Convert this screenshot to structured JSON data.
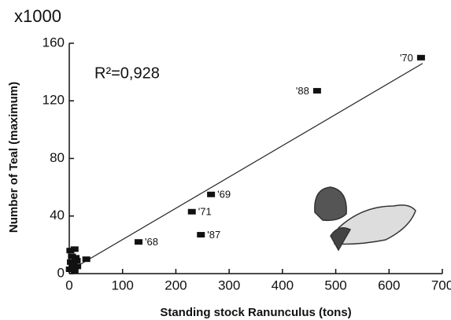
{
  "chart_data": {
    "type": "scatter",
    "unit_label": "x1000",
    "annotation": "R²=0,928",
    "x_label": "Standing stock Ranunculus (tons)",
    "y_label": "Number of Teal (maximum)",
    "xlim": [
      0,
      700
    ],
    "ylim": [
      0,
      160
    ],
    "xticks": [
      0,
      100,
      200,
      300,
      400,
      500,
      600,
      700
    ],
    "yticks": [
      0,
      40,
      80,
      120,
      160
    ],
    "series": [
      {
        "color": "#111111",
        "x": [
          660,
          465,
          266,
          230,
          247,
          130,
          32,
          2,
          10,
          5,
          12,
          3,
          8,
          15,
          1,
          10,
          14,
          6
        ],
        "values": [
          150,
          127,
          55,
          43,
          27,
          22,
          10,
          16,
          17,
          12,
          11,
          8,
          6,
          5,
          3,
          2,
          9,
          4
        ],
        "labels": [
          "'70",
          "'88",
          "'69",
          "'71",
          "'87",
          "'68",
          null,
          null,
          null,
          null,
          null,
          null,
          null,
          null,
          null,
          null,
          null,
          null
        ]
      }
    ],
    "fit_line": {
      "color": "#222222",
      "x": [
        5,
        663
      ],
      "values": [
        3,
        146
      ]
    }
  }
}
